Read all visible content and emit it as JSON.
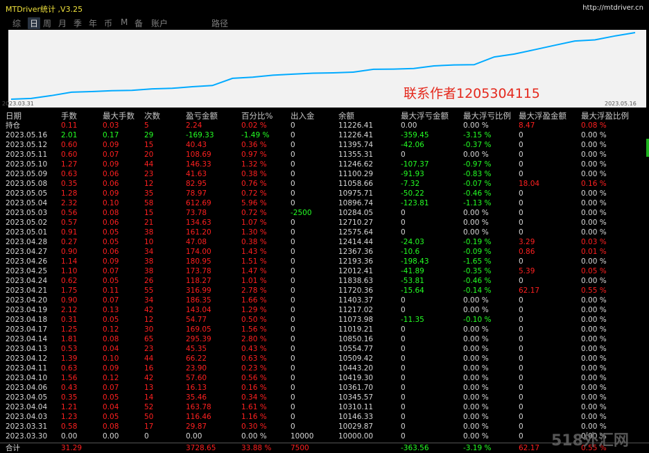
{
  "window": {
    "title": "MTDriver统计 ,V3.25",
    "url": "http://mtdriver.cn"
  },
  "tabs": [
    {
      "label": "综",
      "active": false
    },
    {
      "label": "日",
      "active": true
    },
    {
      "label": "周",
      "active": false
    },
    {
      "label": "月",
      "active": false
    },
    {
      "label": "季",
      "active": false
    },
    {
      "label": "年",
      "active": false
    },
    {
      "label": "币",
      "active": false
    },
    {
      "label": "M",
      "active": false
    },
    {
      "label": "备",
      "active": false
    },
    {
      "label": "账户",
      "active": false
    },
    {
      "label": "路径",
      "active": false
    }
  ],
  "chart": {
    "start_date": "2023.03.31",
    "end_date": "2023.05.16",
    "line_color": "#00aaff",
    "background": "#f2f2f2",
    "values": [
      10000,
      10029.87,
      10146.33,
      10310.11,
      10345.57,
      10361.7,
      10419.3,
      10443.2,
      10509.42,
      10554.77,
      10850.16,
      11019.21,
      11073.98,
      11217.02,
      11403.37,
      11720.36,
      11838.63,
      12012.41,
      12193.36,
      12367.36,
      12414.44,
      12575.64,
      12710.27,
      10284.05,
      10896.74,
      10975.71,
      11058.66,
      11100.29,
      11246.62,
      11355.31,
      11395.74,
      11226.41
    ]
  },
  "watermark": "联系作者1205304115",
  "logo": "518外汇网",
  "columns": [
    "日期",
    "手数",
    "最大手数",
    "次数",
    "盈亏金额",
    "百分比%",
    "出入金",
    "余额",
    "最大浮亏金额",
    "最大浮亏比例",
    "最大浮盈金额",
    "最大浮盈比例"
  ],
  "holding": {
    "date": "持仓",
    "lots": "0.11",
    "max_lots": "0.03",
    "count": "5",
    "pl": "2.24",
    "pct": "0.02 %",
    "io": "0",
    "balance": "11226.41",
    "mfl": "0.00",
    "mflp": "0.00 %",
    "mfp": "8.47",
    "mfpp": "0.08 %"
  },
  "rows": [
    {
      "date": "2023.05.16",
      "lots": "2.01",
      "max_lots": "0.17",
      "count": "29",
      "pl": "-169.33",
      "pct": "-1.49 %",
      "io": "0",
      "balance": "11226.41",
      "mfl": "-359.45",
      "mflp": "-3.15 %",
      "mfp": "0",
      "mfpp": "0.00 %",
      "neg": true
    },
    {
      "date": "2023.05.12",
      "lots": "0.60",
      "max_lots": "0.09",
      "count": "15",
      "pl": "40.43",
      "pct": "0.36 %",
      "io": "0",
      "balance": "11395.74",
      "mfl": "-42.06",
      "mflp": "-0.37 %",
      "mfp": "0",
      "mfpp": "0.00 %"
    },
    {
      "date": "2023.05.11",
      "lots": "0.60",
      "max_lots": "0.07",
      "count": "20",
      "pl": "108.69",
      "pct": "0.97 %",
      "io": "0",
      "balance": "11355.31",
      "mfl": "0",
      "mflp": "0.00 %",
      "mfp": "0",
      "mfpp": "0.00 %"
    },
    {
      "date": "2023.05.10",
      "lots": "1.27",
      "max_lots": "0.09",
      "count": "44",
      "pl": "146.33",
      "pct": "1.32 %",
      "io": "0",
      "balance": "11246.62",
      "mfl": "-107.37",
      "mflp": "-0.97 %",
      "mfp": "0",
      "mfpp": "0.00 %"
    },
    {
      "date": "2023.05.09",
      "lots": "0.63",
      "max_lots": "0.06",
      "count": "23",
      "pl": "41.63",
      "pct": "0.38 %",
      "io": "0",
      "balance": "11100.29",
      "mfl": "-91.93",
      "mflp": "-0.83 %",
      "mfp": "0",
      "mfpp": "0.00 %"
    },
    {
      "date": "2023.05.08",
      "lots": "0.35",
      "max_lots": "0.06",
      "count": "12",
      "pl": "82.95",
      "pct": "0.76 %",
      "io": "0",
      "balance": "11058.66",
      "mfl": "-7.32",
      "mflp": "-0.07 %",
      "mfp": "18.04",
      "mfpp": "0.16 %"
    },
    {
      "date": "2023.05.05",
      "lots": "1.28",
      "max_lots": "0.09",
      "count": "35",
      "pl": "78.97",
      "pct": "0.72 %",
      "io": "0",
      "balance": "10975.71",
      "mfl": "-50.22",
      "mflp": "-0.46 %",
      "mfp": "0",
      "mfpp": "0.00 %"
    },
    {
      "date": "2023.05.04",
      "lots": "2.32",
      "max_lots": "0.10",
      "count": "58",
      "pl": "612.69",
      "pct": "5.96 %",
      "io": "0",
      "balance": "10896.74",
      "mfl": "-123.81",
      "mflp": "-1.13 %",
      "mfp": "0",
      "mfpp": "0.00 %"
    },
    {
      "date": "2023.05.03",
      "lots": "0.56",
      "max_lots": "0.08",
      "count": "15",
      "pl": "73.78",
      "pct": "0.72 %",
      "io": "-2500",
      "balance": "10284.05",
      "mfl": "0",
      "mflp": "0.00 %",
      "mfp": "0",
      "mfpp": "0.00 %"
    },
    {
      "date": "2023.05.02",
      "lots": "0.57",
      "max_lots": "0.06",
      "count": "21",
      "pl": "134.63",
      "pct": "1.07 %",
      "io": "0",
      "balance": "12710.27",
      "mfl": "0",
      "mflp": "0.00 %",
      "mfp": "0",
      "mfpp": "0.00 %"
    },
    {
      "date": "2023.05.01",
      "lots": "0.91",
      "max_lots": "0.05",
      "count": "38",
      "pl": "161.20",
      "pct": "1.30 %",
      "io": "0",
      "balance": "12575.64",
      "mfl": "0",
      "mflp": "0.00 %",
      "mfp": "0",
      "mfpp": "0.00 %"
    },
    {
      "date": "2023.04.28",
      "lots": "0.27",
      "max_lots": "0.05",
      "count": "10",
      "pl": "47.08",
      "pct": "0.38 %",
      "io": "0",
      "balance": "12414.44",
      "mfl": "-24.03",
      "mflp": "-0.19 %",
      "mfp": "3.29",
      "mfpp": "0.03 %"
    },
    {
      "date": "2023.04.27",
      "lots": "0.90",
      "max_lots": "0.06",
      "count": "34",
      "pl": "174.00",
      "pct": "1.43 %",
      "io": "0",
      "balance": "12367.36",
      "mfl": "-10.6",
      "mflp": "-0.09 %",
      "mfp": "0.86",
      "mfpp": "0.01 %"
    },
    {
      "date": "2023.04.26",
      "lots": "1.14",
      "max_lots": "0.09",
      "count": "38",
      "pl": "180.95",
      "pct": "1.51 %",
      "io": "0",
      "balance": "12193.36",
      "mfl": "-198.43",
      "mflp": "-1.65 %",
      "mfp": "0",
      "mfpp": "0.00 %"
    },
    {
      "date": "2023.04.25",
      "lots": "1.10",
      "max_lots": "0.07",
      "count": "38",
      "pl": "173.78",
      "pct": "1.47 %",
      "io": "0",
      "balance": "12012.41",
      "mfl": "-41.89",
      "mflp": "-0.35 %",
      "mfp": "5.39",
      "mfpp": "0.05 %"
    },
    {
      "date": "2023.04.24",
      "lots": "0.62",
      "max_lots": "0.05",
      "count": "26",
      "pl": "118.27",
      "pct": "1.01 %",
      "io": "0",
      "balance": "11838.63",
      "mfl": "-53.81",
      "mflp": "-0.46 %",
      "mfp": "0",
      "mfpp": "0.00 %"
    },
    {
      "date": "2023.04.21",
      "lots": "1.75",
      "max_lots": "0.11",
      "count": "55",
      "pl": "316.99",
      "pct": "2.78 %",
      "io": "0",
      "balance": "11720.36",
      "mfl": "-15.64",
      "mflp": "-0.14 %",
      "mfp": "62.17",
      "mfpp": "0.55 %"
    },
    {
      "date": "2023.04.20",
      "lots": "0.90",
      "max_lots": "0.07",
      "count": "34",
      "pl": "186.35",
      "pct": "1.66 %",
      "io": "0",
      "balance": "11403.37",
      "mfl": "0",
      "mflp": "0.00 %",
      "mfp": "0",
      "mfpp": "0.00 %"
    },
    {
      "date": "2023.04.19",
      "lots": "2.12",
      "max_lots": "0.13",
      "count": "42",
      "pl": "143.04",
      "pct": "1.29 %",
      "io": "0",
      "balance": "11217.02",
      "mfl": "0",
      "mflp": "0.00 %",
      "mfp": "0",
      "mfpp": "0.00 %"
    },
    {
      "date": "2023.04.18",
      "lots": "0.31",
      "max_lots": "0.05",
      "count": "12",
      "pl": "54.77",
      "pct": "0.50 %",
      "io": "0",
      "balance": "11073.98",
      "mfl": "-11.35",
      "mflp": "-0.10 %",
      "mfp": "0",
      "mfpp": "0.00 %"
    },
    {
      "date": "2023.04.17",
      "lots": "1.25",
      "max_lots": "0.12",
      "count": "30",
      "pl": "169.05",
      "pct": "1.56 %",
      "io": "0",
      "balance": "11019.21",
      "mfl": "0",
      "mflp": "0.00 %",
      "mfp": "0",
      "mfpp": "0.00 %"
    },
    {
      "date": "2023.04.14",
      "lots": "1.81",
      "max_lots": "0.08",
      "count": "65",
      "pl": "295.39",
      "pct": "2.80 %",
      "io": "0",
      "balance": "10850.16",
      "mfl": "0",
      "mflp": "0.00 %",
      "mfp": "0",
      "mfpp": "0.00 %"
    },
    {
      "date": "2023.04.13",
      "lots": "0.53",
      "max_lots": "0.04",
      "count": "23",
      "pl": "45.35",
      "pct": "0.43 %",
      "io": "0",
      "balance": "10554.77",
      "mfl": "0",
      "mflp": "0.00 %",
      "mfp": "0",
      "mfpp": "0.00 %"
    },
    {
      "date": "2023.04.12",
      "lots": "1.39",
      "max_lots": "0.10",
      "count": "44",
      "pl": "66.22",
      "pct": "0.63 %",
      "io": "0",
      "balance": "10509.42",
      "mfl": "0",
      "mflp": "0.00 %",
      "mfp": "0",
      "mfpp": "0.00 %"
    },
    {
      "date": "2023.04.11",
      "lots": "0.63",
      "max_lots": "0.09",
      "count": "16",
      "pl": "23.90",
      "pct": "0.23 %",
      "io": "0",
      "balance": "10443.20",
      "mfl": "0",
      "mflp": "0.00 %",
      "mfp": "0",
      "mfpp": "0.00 %"
    },
    {
      "date": "2023.04.10",
      "lots": "1.56",
      "max_lots": "0.12",
      "count": "42",
      "pl": "57.60",
      "pct": "0.56 %",
      "io": "0",
      "balance": "10419.30",
      "mfl": "0",
      "mflp": "0.00 %",
      "mfp": "0",
      "mfpp": "0.00 %"
    },
    {
      "date": "2023.04.06",
      "lots": "0.43",
      "max_lots": "0.07",
      "count": "13",
      "pl": "16.13",
      "pct": "0.16 %",
      "io": "0",
      "balance": "10361.70",
      "mfl": "0",
      "mflp": "0.00 %",
      "mfp": "0",
      "mfpp": "0.00 %"
    },
    {
      "date": "2023.04.05",
      "lots": "0.35",
      "max_lots": "0.05",
      "count": "14",
      "pl": "35.46",
      "pct": "0.34 %",
      "io": "0",
      "balance": "10345.57",
      "mfl": "0",
      "mflp": "0.00 %",
      "mfp": "0",
      "mfpp": "0.00 %"
    },
    {
      "date": "2023.04.04",
      "lots": "1.21",
      "max_lots": "0.04",
      "count": "52",
      "pl": "163.78",
      "pct": "1.61 %",
      "io": "0",
      "balance": "10310.11",
      "mfl": "0",
      "mflp": "0.00 %",
      "mfp": "0",
      "mfpp": "0.00 %"
    },
    {
      "date": "2023.04.03",
      "lots": "1.23",
      "max_lots": "0.05",
      "count": "50",
      "pl": "116.46",
      "pct": "1.16 %",
      "io": "0",
      "balance": "10146.33",
      "mfl": "0",
      "mflp": "0.00 %",
      "mfp": "0",
      "mfpp": "0.00 %"
    },
    {
      "date": "2023.03.31",
      "lots": "0.58",
      "max_lots": "0.08",
      "count": "17",
      "pl": "29.87",
      "pct": "0.30 %",
      "io": "0",
      "balance": "10029.87",
      "mfl": "0",
      "mflp": "0.00 %",
      "mfp": "0",
      "mfpp": "0.00 %"
    },
    {
      "date": "2023.03.30",
      "lots": "0.00",
      "max_lots": "0.00",
      "count": "0",
      "pl": "0.00",
      "pct": "0.00 %",
      "io": "10000",
      "balance": "10000.00",
      "mfl": "0",
      "mflp": "0.00 %",
      "mfp": "0",
      "mfpp": "0.00 %",
      "plain": true
    }
  ],
  "total": {
    "date": "合计",
    "lots": "31.29",
    "pl": "3728.65",
    "pct": "33.88 %",
    "io": "7500",
    "mfl": "-363.56",
    "mflp": "-3.19 %",
    "mfp": "62.17",
    "mfpp": "0.55 %"
  }
}
